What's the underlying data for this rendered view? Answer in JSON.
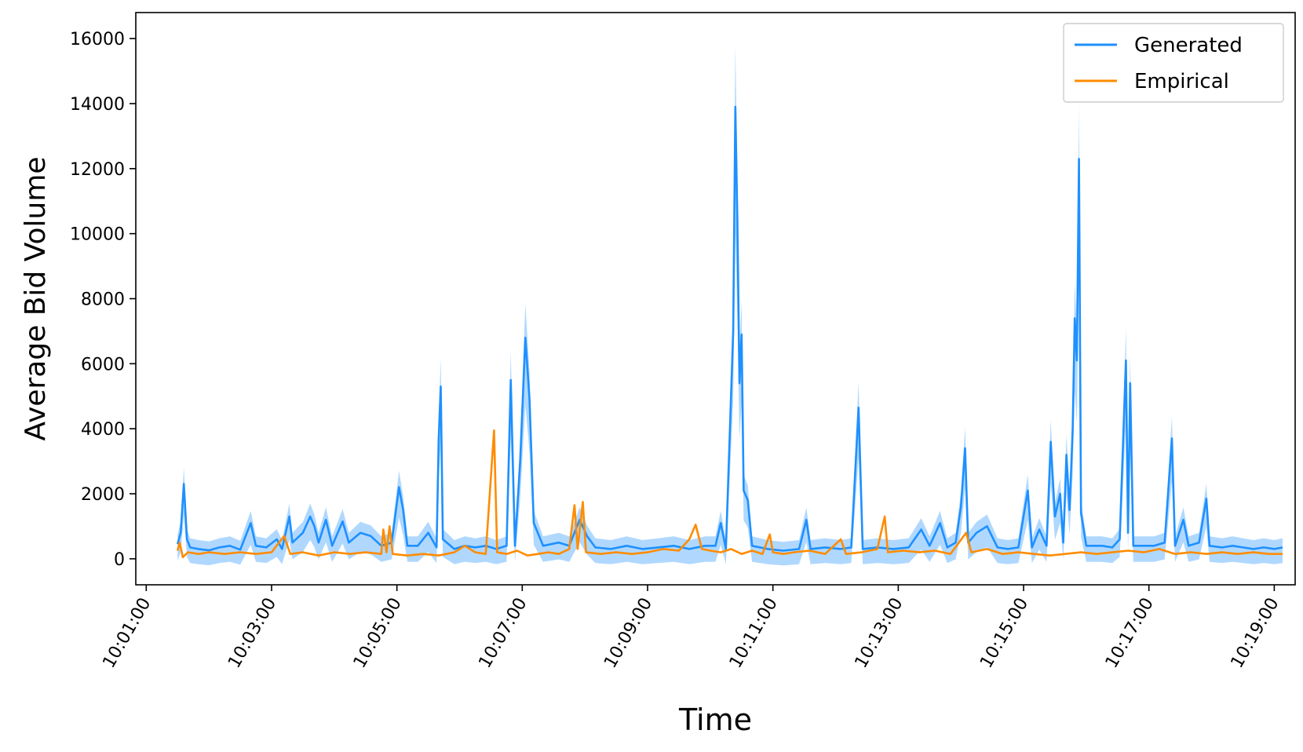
{
  "chart_data": {
    "type": "line",
    "title": "",
    "xlabel": "Time",
    "ylabel": "Average Bid Volume",
    "xlim": [
      "10:00:50",
      "10:19:20"
    ],
    "ylim": [
      -800,
      16800
    ],
    "x_ticks": [
      "10:01:00",
      "10:03:00",
      "10:05:00",
      "10:07:00",
      "10:09:00",
      "10:11:00",
      "10:13:00",
      "10:15:00",
      "10:17:00",
      "10:19:00"
    ],
    "y_ticks": [
      0,
      2000,
      4000,
      6000,
      8000,
      10000,
      12000,
      14000,
      16000
    ],
    "legend_position": "top-right",
    "grid": false,
    "series": [
      {
        "name": "Generated",
        "color": "#1e90ff",
        "band_color": "#1e90ff",
        "band_opacity": 0.35,
        "points": [
          [
            "10:01:30",
            450
          ],
          [
            "10:01:33",
            800
          ],
          [
            "10:01:36",
            2300
          ],
          [
            "10:01:39",
            600
          ],
          [
            "10:01:42",
            350
          ],
          [
            "10:01:50",
            300
          ],
          [
            "10:02:00",
            260
          ],
          [
            "10:02:10",
            350
          ],
          [
            "10:02:20",
            400
          ],
          [
            "10:02:30",
            280
          ],
          [
            "10:02:40",
            1100
          ],
          [
            "10:02:45",
            400
          ],
          [
            "10:02:55",
            350
          ],
          [
            "10:03:05",
            600
          ],
          [
            "10:03:10",
            300
          ],
          [
            "10:03:17",
            1300
          ],
          [
            "10:03:20",
            500
          ],
          [
            "10:03:30",
            800
          ],
          [
            "10:03:37",
            1300
          ],
          [
            "10:03:41",
            1000
          ],
          [
            "10:03:45",
            500
          ],
          [
            "10:03:52",
            1200
          ],
          [
            "10:03:58",
            400
          ],
          [
            "10:04:08",
            1150
          ],
          [
            "10:04:14",
            500
          ],
          [
            "10:04:25",
            800
          ],
          [
            "10:04:35",
            700
          ],
          [
            "10:04:45",
            400
          ],
          [
            "10:04:55",
            500
          ],
          [
            "10:05:02",
            2200
          ],
          [
            "10:05:06",
            1500
          ],
          [
            "10:05:10",
            400
          ],
          [
            "10:05:20",
            400
          ],
          [
            "10:05:30",
            800
          ],
          [
            "10:05:38",
            350
          ],
          [
            "10:05:40",
            3700
          ],
          [
            "10:05:42",
            5300
          ],
          [
            "10:05:44",
            600
          ],
          [
            "10:05:55",
            300
          ],
          [
            "10:06:05",
            400
          ],
          [
            "10:06:15",
            350
          ],
          [
            "10:06:25",
            400
          ],
          [
            "10:06:35",
            300
          ],
          [
            "10:06:45",
            400
          ],
          [
            "10:06:49",
            5500
          ],
          [
            "10:06:53",
            400
          ],
          [
            "10:06:58",
            3000
          ],
          [
            "10:07:03",
            6800
          ],
          [
            "10:07:07",
            4900
          ],
          [
            "10:07:11",
            1100
          ],
          [
            "10:07:20",
            400
          ],
          [
            "10:07:35",
            500
          ],
          [
            "10:07:45",
            400
          ],
          [
            "10:07:55",
            1200
          ],
          [
            "10:08:02",
            700
          ],
          [
            "10:08:10",
            350
          ],
          [
            "10:08:25",
            300
          ],
          [
            "10:08:40",
            400
          ],
          [
            "10:08:55",
            300
          ],
          [
            "10:09:10",
            350
          ],
          [
            "10:09:25",
            400
          ],
          [
            "10:09:40",
            300
          ],
          [
            "10:09:55",
            400
          ],
          [
            "10:10:05",
            400
          ],
          [
            "10:10:10",
            1100
          ],
          [
            "10:10:15",
            300
          ],
          [
            "10:10:22",
            7000
          ],
          [
            "10:10:24",
            13900
          ],
          [
            "10:10:26",
            10400
          ],
          [
            "10:10:28",
            5400
          ],
          [
            "10:10:30",
            6900
          ],
          [
            "10:10:32",
            2100
          ],
          [
            "10:10:36",
            1800
          ],
          [
            "10:10:40",
            400
          ],
          [
            "10:10:55",
            300
          ],
          [
            "10:11:10",
            250
          ],
          [
            "10:11:25",
            300
          ],
          [
            "10:11:32",
            1200
          ],
          [
            "10:11:36",
            300
          ],
          [
            "10:11:50",
            350
          ],
          [
            "10:12:05",
            300
          ],
          [
            "10:12:15",
            350
          ],
          [
            "10:12:22",
            4650
          ],
          [
            "10:12:26",
            300
          ],
          [
            "10:12:40",
            350
          ],
          [
            "10:12:55",
            300
          ],
          [
            "10:13:10",
            350
          ],
          [
            "10:13:22",
            900
          ],
          [
            "10:13:30",
            400
          ],
          [
            "10:13:40",
            1100
          ],
          [
            "10:13:47",
            350
          ],
          [
            "10:13:55",
            500
          ],
          [
            "10:14:00",
            1600
          ],
          [
            "10:14:04",
            3400
          ],
          [
            "10:14:07",
            500
          ],
          [
            "10:14:15",
            800
          ],
          [
            "10:14:25",
            1000
          ],
          [
            "10:14:35",
            350
          ],
          [
            "10:14:45",
            300
          ],
          [
            "10:14:55",
            350
          ],
          [
            "10:15:04",
            2100
          ],
          [
            "10:15:08",
            350
          ],
          [
            "10:15:15",
            900
          ],
          [
            "10:15:22",
            400
          ],
          [
            "10:15:26",
            3600
          ],
          [
            "10:15:30",
            1300
          ],
          [
            "10:15:35",
            2000
          ],
          [
            "10:15:38",
            500
          ],
          [
            "10:15:41",
            3200
          ],
          [
            "10:15:44",
            1500
          ],
          [
            "10:15:47",
            4000
          ],
          [
            "10:15:49",
            7400
          ],
          [
            "10:15:51",
            6100
          ],
          [
            "10:15:53",
            12300
          ],
          [
            "10:15:55",
            1400
          ],
          [
            "10:16:00",
            400
          ],
          [
            "10:16:15",
            400
          ],
          [
            "10:16:25",
            350
          ],
          [
            "10:16:32",
            600
          ],
          [
            "10:16:38",
            6100
          ],
          [
            "10:16:40",
            800
          ],
          [
            "10:16:42",
            5400
          ],
          [
            "10:16:45",
            400
          ],
          [
            "10:16:55",
            400
          ],
          [
            "10:17:05",
            400
          ],
          [
            "10:17:15",
            500
          ],
          [
            "10:17:22",
            3700
          ],
          [
            "10:17:25",
            400
          ],
          [
            "10:17:33",
            1200
          ],
          [
            "10:17:38",
            400
          ],
          [
            "10:17:48",
            500
          ],
          [
            "10:17:55",
            1850
          ],
          [
            "10:17:58",
            400
          ],
          [
            "10:18:10",
            350
          ],
          [
            "10:18:20",
            400
          ],
          [
            "10:18:30",
            350
          ],
          [
            "10:18:40",
            300
          ],
          [
            "10:18:50",
            350
          ],
          [
            "10:19:00",
            300
          ],
          [
            "10:19:08",
            350
          ]
        ]
      },
      {
        "name": "Empirical",
        "color": "#ff8c00",
        "points": [
          [
            "10:01:30",
            250
          ],
          [
            "10:01:32",
            500
          ],
          [
            "10:01:35",
            50
          ],
          [
            "10:01:40",
            200
          ],
          [
            "10:01:50",
            150
          ],
          [
            "10:02:00",
            200
          ],
          [
            "10:02:15",
            150
          ],
          [
            "10:02:30",
            200
          ],
          [
            "10:02:45",
            150
          ],
          [
            "10:03:00",
            200
          ],
          [
            "10:03:12",
            700
          ],
          [
            "10:03:18",
            150
          ],
          [
            "10:03:30",
            200
          ],
          [
            "10:03:45",
            100
          ],
          [
            "10:04:00",
            200
          ],
          [
            "10:04:15",
            150
          ],
          [
            "10:04:30",
            200
          ],
          [
            "10:04:45",
            150
          ],
          [
            "10:04:47",
            900
          ],
          [
            "10:04:50",
            200
          ],
          [
            "10:04:53",
            1000
          ],
          [
            "10:04:56",
            150
          ],
          [
            "10:05:10",
            100
          ],
          [
            "10:05:25",
            150
          ],
          [
            "10:05:40",
            100
          ],
          [
            "10:05:55",
            200
          ],
          [
            "10:06:05",
            400
          ],
          [
            "10:06:15",
            200
          ],
          [
            "10:06:25",
            150
          ],
          [
            "10:06:33",
            3950
          ],
          [
            "10:06:36",
            200
          ],
          [
            "10:06:45",
            150
          ],
          [
            "10:06:55",
            250
          ],
          [
            "10:07:05",
            100
          ],
          [
            "10:07:15",
            150
          ],
          [
            "10:07:25",
            200
          ],
          [
            "10:07:35",
            150
          ],
          [
            "10:07:45",
            300
          ],
          [
            "10:07:50",
            1650
          ],
          [
            "10:07:53",
            300
          ],
          [
            "10:07:58",
            1750
          ],
          [
            "10:08:01",
            200
          ],
          [
            "10:08:15",
            150
          ],
          [
            "10:08:30",
            200
          ],
          [
            "10:08:45",
            150
          ],
          [
            "10:09:00",
            200
          ],
          [
            "10:09:15",
            300
          ],
          [
            "10:09:30",
            250
          ],
          [
            "10:09:40",
            600
          ],
          [
            "10:09:46",
            1050
          ],
          [
            "10:09:52",
            300
          ],
          [
            "10:10:00",
            250
          ],
          [
            "10:10:10",
            200
          ],
          [
            "10:10:20",
            300
          ],
          [
            "10:10:30",
            150
          ],
          [
            "10:10:40",
            250
          ],
          [
            "10:10:50",
            150
          ],
          [
            "10:10:57",
            750
          ],
          [
            "10:11:00",
            200
          ],
          [
            "10:11:10",
            150
          ],
          [
            "10:11:20",
            200
          ],
          [
            "10:11:35",
            250
          ],
          [
            "10:11:50",
            150
          ],
          [
            "10:12:05",
            600
          ],
          [
            "10:12:10",
            150
          ],
          [
            "10:12:25",
            200
          ],
          [
            "10:12:40",
            300
          ],
          [
            "10:12:47",
            1300
          ],
          [
            "10:12:50",
            200
          ],
          [
            "10:13:05",
            250
          ],
          [
            "10:13:20",
            200
          ],
          [
            "10:13:35",
            250
          ],
          [
            "10:13:50",
            150
          ],
          [
            "10:14:05",
            800
          ],
          [
            "10:14:10",
            200
          ],
          [
            "10:14:25",
            300
          ],
          [
            "10:14:40",
            150
          ],
          [
            "10:14:55",
            200
          ],
          [
            "10:15:10",
            150
          ],
          [
            "10:15:25",
            100
          ],
          [
            "10:15:40",
            150
          ],
          [
            "10:15:55",
            200
          ],
          [
            "10:16:10",
            150
          ],
          [
            "10:16:25",
            200
          ],
          [
            "10:16:40",
            250
          ],
          [
            "10:16:55",
            200
          ],
          [
            "10:17:10",
            300
          ],
          [
            "10:17:25",
            150
          ],
          [
            "10:17:40",
            200
          ],
          [
            "10:17:55",
            150
          ],
          [
            "10:18:10",
            200
          ],
          [
            "10:18:25",
            150
          ],
          [
            "10:18:40",
            200
          ],
          [
            "10:18:55",
            150
          ],
          [
            "10:19:08",
            150
          ]
        ]
      }
    ]
  }
}
